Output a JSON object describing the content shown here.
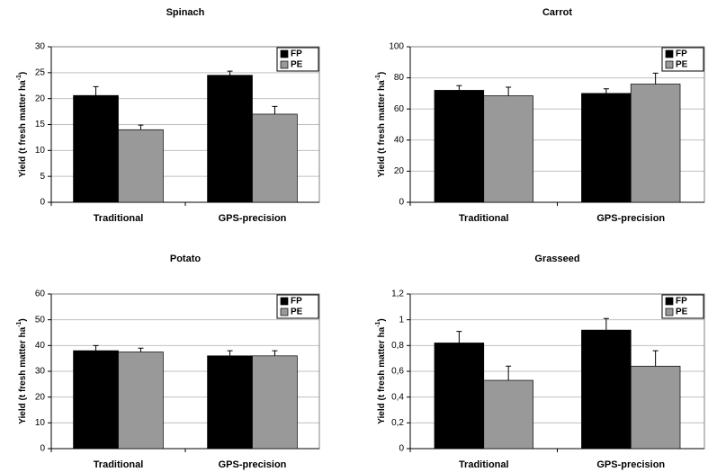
{
  "chart_data": [
    {
      "type": "bar",
      "title": "Spinach",
      "ylabel": "Yield (t fresh matter ha",
      "ylabel_sup": "-1",
      "categories": [
        "Traditional",
        "GPS-precision"
      ],
      "series": [
        {
          "name": "FP",
          "color": "#000000",
          "values": [
            20.6,
            24.5
          ],
          "errors": [
            1.7,
            0.8
          ]
        },
        {
          "name": "PE",
          "color": "#999999",
          "values": [
            14,
            17
          ],
          "errors": [
            0.9,
            1.5
          ]
        }
      ],
      "ylim": [
        0,
        30
      ],
      "yticks": [
        0,
        5,
        10,
        15,
        20,
        25,
        30
      ],
      "grid": true,
      "legend": "top-right"
    },
    {
      "type": "bar",
      "title": "Carrot",
      "ylabel": "Yield (t fresh matter ha",
      "ylabel_sup": "-1",
      "categories": [
        "Traditional",
        "GPS-precision"
      ],
      "series": [
        {
          "name": "FP",
          "color": "#000000",
          "values": [
            72,
            70
          ],
          "errors": [
            3,
            3
          ]
        },
        {
          "name": "PE",
          "color": "#999999",
          "values": [
            68.5,
            76
          ],
          "errors": [
            5.5,
            7
          ]
        }
      ],
      "ylim": [
        0,
        100
      ],
      "yticks": [
        0,
        20,
        40,
        60,
        80,
        100
      ],
      "grid": true,
      "legend": "top-right"
    },
    {
      "type": "bar",
      "title": "Potato",
      "ylabel": "Yield (t fresh matter ha",
      "ylabel_sup": "-1",
      "categories": [
        "Traditional",
        "GPS-precision"
      ],
      "series": [
        {
          "name": "FP",
          "color": "#000000",
          "values": [
            38,
            36
          ],
          "errors": [
            2,
            2
          ]
        },
        {
          "name": "PE",
          "color": "#999999",
          "values": [
            37.5,
            36
          ],
          "errors": [
            1.5,
            2
          ]
        }
      ],
      "ylim": [
        0,
        60
      ],
      "yticks": [
        0,
        10,
        20,
        30,
        40,
        50,
        60
      ],
      "grid": true,
      "legend": "top-right"
    },
    {
      "type": "bar",
      "title": "Grasseed",
      "ylabel": "Yield (t fresh matter ha",
      "ylabel_sup": "-1",
      "categories": [
        "Traditional",
        "GPS-precision"
      ],
      "series": [
        {
          "name": "FP",
          "color": "#000000",
          "values": [
            0.82,
            0.92
          ],
          "errors": [
            0.09,
            0.09
          ]
        },
        {
          "name": "PE",
          "color": "#999999",
          "values": [
            0.53,
            0.64
          ],
          "errors": [
            0.11,
            0.12
          ]
        }
      ],
      "ylim": [
        0,
        1.2
      ],
      "yticks": [
        0,
        {
          "value": 0.2,
          "label": "0,2"
        },
        {
          "value": 0.4,
          "label": "0,4"
        },
        {
          "value": 0.6,
          "label": "0,6"
        },
        {
          "value": 0.8,
          "label": "0,8"
        },
        1,
        {
          "value": 1.2,
          "label": "1,2"
        }
      ],
      "grid": true,
      "legend": "top-right"
    }
  ]
}
